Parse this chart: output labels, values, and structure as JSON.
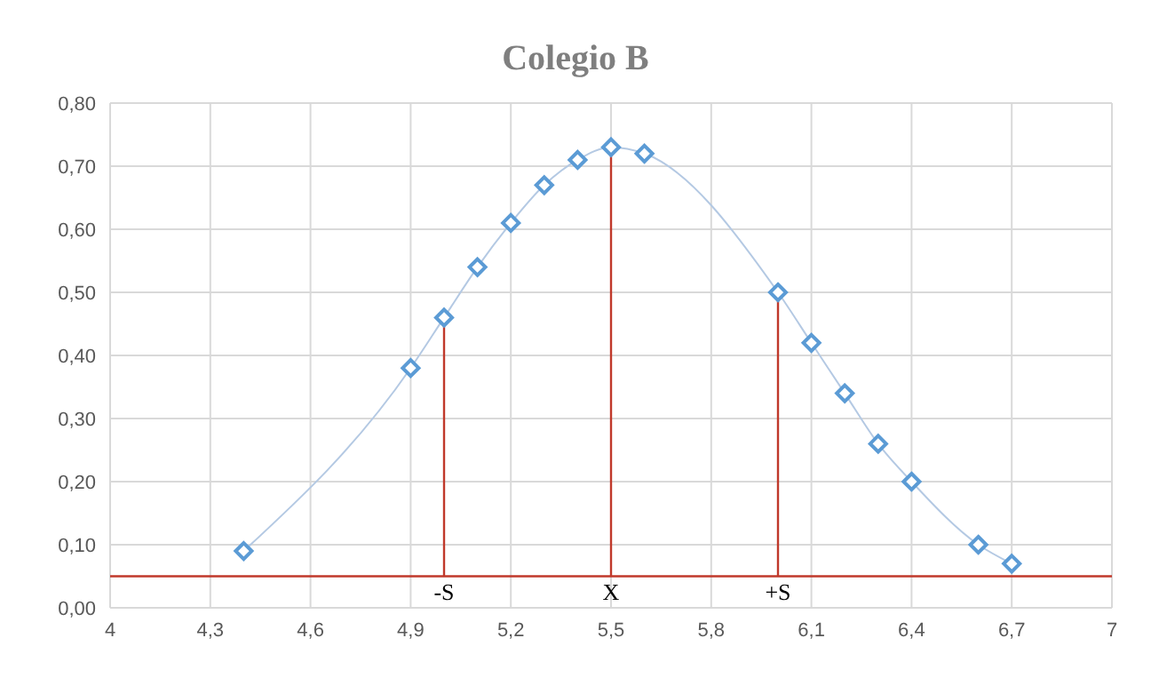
{
  "chart_data": {
    "type": "line",
    "title": "Colegio B",
    "x": [
      4.4,
      4.9,
      5.0,
      5.1,
      5.2,
      5.3,
      5.4,
      5.5,
      5.6,
      6.0,
      6.1,
      6.2,
      6.3,
      6.4,
      6.6,
      6.7
    ],
    "series": [
      {
        "color": "#5b9bd5",
        "values": [
          0.09,
          0.38,
          0.46,
          0.54,
          0.61,
          0.67,
          0.71,
          0.73,
          0.72,
          0.5,
          0.42,
          0.34,
          0.26,
          0.2,
          0.1,
          0.07
        ]
      }
    ],
    "xlim": [
      4,
      7
    ],
    "xticks": [
      4,
      {
        "value": 4.3,
        "label": "4,3"
      },
      {
        "value": 4.6,
        "label": "4,6"
      },
      {
        "value": 4.9,
        "label": "4,9"
      },
      {
        "value": 5.2,
        "label": "5,2"
      },
      {
        "value": 5.5,
        "label": "5,5"
      },
      {
        "value": 5.8,
        "label": "5,8"
      },
      {
        "value": 6.1,
        "label": "6,1"
      },
      {
        "value": 6.4,
        "label": "6,4"
      },
      {
        "value": 6.7,
        "label": "6,7"
      },
      7
    ],
    "ylim": [
      0,
      0.8
    ],
    "yticks": [
      {
        "value": 0,
        "label": "0,00"
      },
      {
        "value": 0.1,
        "label": "0,10"
      },
      {
        "value": 0.2,
        "label": "0,20"
      },
      {
        "value": 0.3,
        "label": "0,30"
      },
      {
        "value": 0.4,
        "label": "0,40"
      },
      {
        "value": 0.5,
        "label": "0,50"
      },
      {
        "value": 0.6,
        "label": "0,60"
      },
      {
        "value": 0.7,
        "label": "0,70"
      },
      {
        "value": 0.8,
        "label": "0,80"
      }
    ],
    "grid": true,
    "marker": "diamond",
    "line_style": "solid",
    "legend": false,
    "ref_lines": [
      {
        "axis": "y",
        "value": 0.05,
        "color": "#c0392b"
      },
      {
        "axis": "x",
        "value": 5.0,
        "label": "-S",
        "color": "#c0392b"
      },
      {
        "axis": "x",
        "value": 5.5,
        "label": "X",
        "color": "#c0392b"
      },
      {
        "axis": "x",
        "value": 6.0,
        "label": "+S",
        "color": "#c0392b"
      }
    ]
  }
}
